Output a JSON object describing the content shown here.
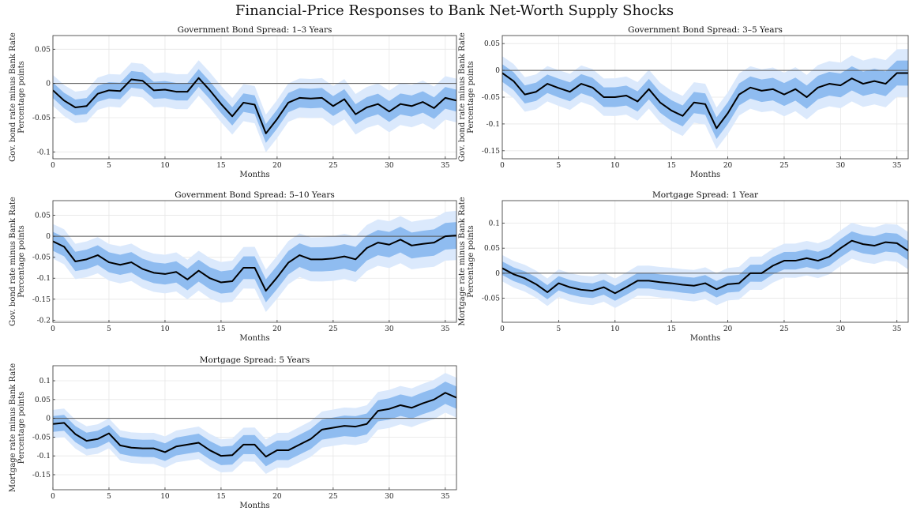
{
  "title": "Financial-Price Responses to Bank Net-Worth Supply Shocks",
  "colors": {
    "outer_band": "#dbe9fc",
    "inner_band": "#8fbcf0",
    "line": "#000000",
    "zero": "#555555",
    "grid": "#e6e6e6"
  },
  "chart_data": [
    {
      "type": "line",
      "title": "Government Bond Spread: 1–3 Years",
      "xlabel": "Months",
      "ylabel": [
        "Gov. bond rate minus Bank Rate",
        "Percentage points"
      ],
      "xlim": [
        0,
        36
      ],
      "ylim": [
        -0.11,
        0.07
      ],
      "xticks": [
        0,
        5,
        10,
        15,
        20,
        25,
        30,
        35
      ],
      "yticks": [
        0.05,
        0,
        -0.05,
        -0.1
      ],
      "ytick_labels": [
        "0.05",
        "0",
        "-0.05",
        "-0.1"
      ],
      "x": [
        0,
        1,
        2,
        3,
        4,
        5,
        6,
        7,
        8,
        9,
        10,
        11,
        12,
        13,
        14,
        15,
        16,
        17,
        18,
        19,
        20,
        21,
        22,
        23,
        24,
        25,
        26,
        27,
        28,
        29,
        30,
        31,
        32,
        33,
        34,
        35,
        36
      ],
      "series": [
        {
          "values": [
            -0.01,
            -0.025,
            -0.035,
            -0.033,
            -0.015,
            -0.01,
            -0.011,
            0.006,
            0.004,
            -0.01,
            -0.009,
            -0.012,
            -0.012,
            0.008,
            -0.01,
            -0.03,
            -0.048,
            -0.028,
            -0.031,
            -0.073,
            -0.052,
            -0.028,
            -0.021,
            -0.022,
            -0.021,
            -0.033,
            -0.023,
            -0.045,
            -0.035,
            -0.03,
            -0.041,
            -0.03,
            -0.033,
            -0.027,
            -0.036,
            -0.021,
            -0.025
          ]
        }
      ],
      "bands": {
        "inner_halfwidth": 0.015,
        "outer_halfwidth": 0.03
      }
    },
    {
      "type": "line",
      "title": "Government Bond Spread: 3–5 Years",
      "xlabel": "Months",
      "ylabel": [
        "Gov. bond rate minus Bank Rate",
        "Percentage points"
      ],
      "xlim": [
        0,
        36
      ],
      "ylim": [
        -0.165,
        0.065
      ],
      "xticks": [
        0,
        5,
        10,
        15,
        20,
        25,
        30,
        35
      ],
      "yticks": [
        0.05,
        0,
        -0.05,
        -0.1,
        -0.15
      ],
      "ytick_labels": [
        "0.05",
        "0",
        "-0.05",
        "-0.1",
        "-0.15"
      ],
      "x": [
        0,
        1,
        2,
        3,
        4,
        5,
        6,
        7,
        8,
        9,
        10,
        11,
        12,
        13,
        14,
        15,
        16,
        17,
        18,
        19,
        20,
        21,
        22,
        23,
        24,
        25,
        26,
        27,
        28,
        29,
        30,
        31,
        32,
        33,
        34,
        35,
        36
      ],
      "series": [
        {
          "values": [
            -0.005,
            -0.02,
            -0.045,
            -0.04,
            -0.025,
            -0.033,
            -0.04,
            -0.025,
            -0.032,
            -0.05,
            -0.05,
            -0.047,
            -0.058,
            -0.035,
            -0.06,
            -0.075,
            -0.085,
            -0.06,
            -0.063,
            -0.108,
            -0.08,
            -0.045,
            -0.032,
            -0.038,
            -0.035,
            -0.045,
            -0.035,
            -0.05,
            -0.032,
            -0.025,
            -0.028,
            -0.015,
            -0.025,
            -0.02,
            -0.025,
            -0.005,
            -0.005
          ]
        }
      ],
      "bands": {
        "inner_halfwidth": 0.022,
        "outer_halfwidth": 0.042
      }
    },
    {
      "type": "line",
      "title": "Government Bond Spread: 5–10 Years",
      "xlabel": "Months",
      "ylabel": [
        "Gov. bond rate minus Bank Rate",
        "Percentage points"
      ],
      "xlim": [
        0,
        36
      ],
      "ylim": [
        -0.205,
        0.085
      ],
      "xticks": [
        0,
        5,
        10,
        15,
        20,
        25,
        30,
        35
      ],
      "yticks": [
        0.05,
        0,
        -0.05,
        -0.1,
        -0.15,
        -0.2
      ],
      "ytick_labels": [
        "0.05",
        "0",
        "-0.05",
        "-0.1",
        "-0.15",
        "-0.2"
      ],
      "x": [
        0,
        1,
        2,
        3,
        4,
        5,
        6,
        7,
        8,
        9,
        10,
        11,
        12,
        13,
        14,
        15,
        16,
        17,
        18,
        19,
        20,
        21,
        22,
        23,
        24,
        25,
        26,
        27,
        28,
        29,
        30,
        31,
        32,
        33,
        34,
        35,
        36
      ],
      "series": [
        {
          "values": [
            -0.012,
            -0.025,
            -0.06,
            -0.055,
            -0.045,
            -0.062,
            -0.068,
            -0.062,
            -0.078,
            -0.087,
            -0.09,
            -0.085,
            -0.103,
            -0.082,
            -0.1,
            -0.11,
            -0.107,
            -0.075,
            -0.075,
            -0.13,
            -0.098,
            -0.063,
            -0.045,
            -0.055,
            -0.055,
            -0.053,
            -0.048,
            -0.055,
            -0.028,
            -0.015,
            -0.02,
            -0.008,
            -0.022,
            -0.018,
            -0.015,
            0.0,
            0.002
          ]
        }
      ],
      "bands": {
        "inner_halfwidth": 0.03,
        "outer_halfwidth": 0.055
      }
    },
    {
      "type": "line",
      "title": "Mortgage Spread: 1 Year",
      "xlabel": "Months",
      "ylabel": [
        "Mortgage rate minus Bank Rate",
        "Percentage points"
      ],
      "xlim": [
        0,
        36
      ],
      "ylim": [
        -0.098,
        0.145
      ],
      "xticks": [
        0,
        5,
        10,
        15,
        20,
        25,
        30,
        35
      ],
      "yticks": [
        0.1,
        0.05,
        0,
        -0.05
      ],
      "ytick_labels": [
        "0.1",
        "0.05",
        "0",
        "-0.05"
      ],
      "x": [
        0,
        1,
        2,
        3,
        4,
        5,
        6,
        7,
        8,
        9,
        10,
        11,
        12,
        13,
        14,
        15,
        16,
        17,
        18,
        19,
        20,
        21,
        22,
        23,
        24,
        25,
        26,
        27,
        28,
        29,
        30,
        31,
        32,
        33,
        34,
        35,
        36
      ],
      "series": [
        {
          "values": [
            0.01,
            -0.002,
            -0.01,
            -0.022,
            -0.038,
            -0.02,
            -0.028,
            -0.033,
            -0.035,
            -0.028,
            -0.04,
            -0.028,
            -0.015,
            -0.015,
            -0.018,
            -0.02,
            -0.023,
            -0.025,
            -0.02,
            -0.032,
            -0.022,
            -0.02,
            0.0,
            0.0,
            0.015,
            0.025,
            0.025,
            0.03,
            0.025,
            0.033,
            0.05,
            0.065,
            0.058,
            0.055,
            0.062,
            0.06,
            0.045
          ]
        }
      ],
      "bands": {
        "inner_halfwidth": 0.018,
        "outer_halfwidth": 0.035
      }
    },
    {
      "type": "line",
      "title": "Mortgage Spread: 5 Years",
      "xlabel": "Months",
      "ylabel": [
        "Mortgage rate minus Bank Rate",
        "Percentage points"
      ],
      "xlim": [
        0,
        36
      ],
      "ylim": [
        -0.19,
        0.14
      ],
      "xticks": [
        0,
        5,
        10,
        15,
        20,
        25,
        30,
        35
      ],
      "yticks": [
        0.1,
        0.05,
        0,
        -0.05,
        -0.1,
        -0.15
      ],
      "ytick_labels": [
        "0.1",
        "0.05",
        "0",
        "-0.05",
        "-0.1",
        "-0.15"
      ],
      "x": [
        0,
        1,
        2,
        3,
        4,
        5,
        6,
        7,
        8,
        9,
        10,
        11,
        12,
        13,
        14,
        15,
        16,
        17,
        18,
        19,
        20,
        21,
        22,
        23,
        24,
        25,
        26,
        27,
        28,
        29,
        30,
        31,
        32,
        33,
        34,
        35,
        36
      ],
      "series": [
        {
          "values": [
            -0.015,
            -0.012,
            -0.042,
            -0.06,
            -0.055,
            -0.04,
            -0.072,
            -0.078,
            -0.08,
            -0.08,
            -0.09,
            -0.075,
            -0.07,
            -0.065,
            -0.085,
            -0.1,
            -0.098,
            -0.07,
            -0.07,
            -0.102,
            -0.085,
            -0.085,
            -0.07,
            -0.055,
            -0.03,
            -0.025,
            -0.02,
            -0.022,
            -0.015,
            0.02,
            0.025,
            0.035,
            0.028,
            0.04,
            0.05,
            0.068,
            0.055
          ]
        }
      ],
      "bands": {
        "inner_halfwidth": 0.028,
        "outer_halfwidth": 0.05
      }
    }
  ]
}
